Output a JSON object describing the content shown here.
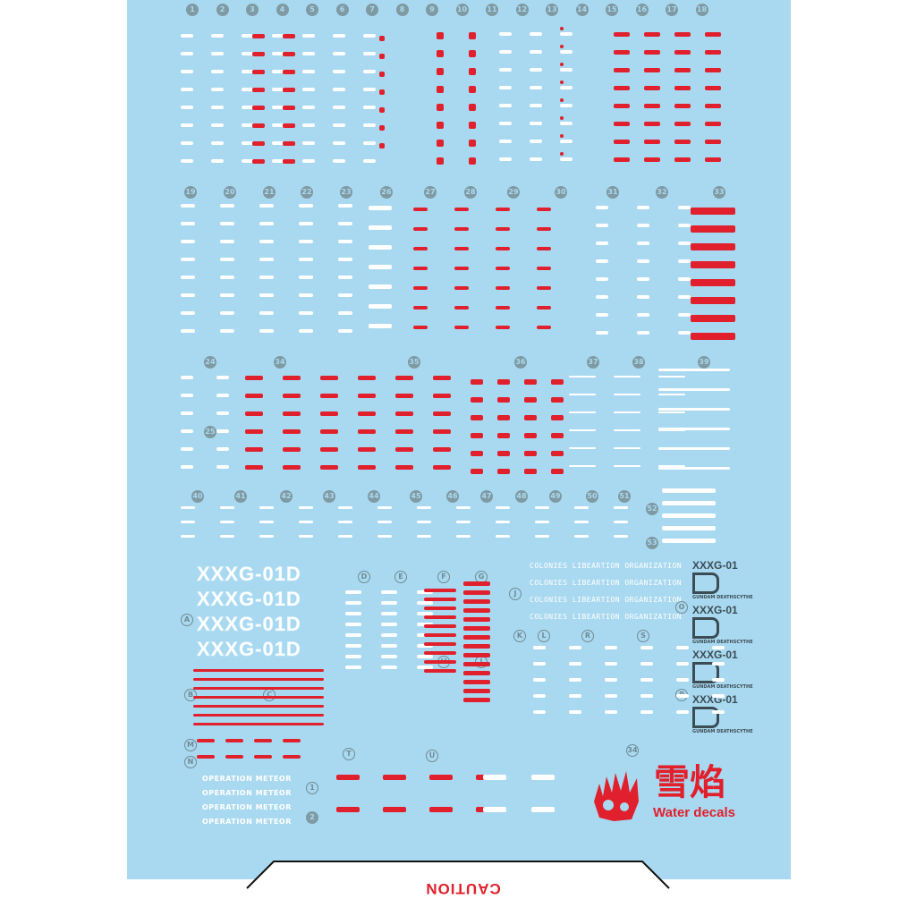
{
  "colors": {
    "sheet": "#a9d9f0",
    "white_decal": "#ffffff",
    "red_decal": "#e0202c",
    "marker": "#7f9aa3"
  },
  "markers": [
    {
      "label": "1"
    },
    {
      "label": "2"
    },
    {
      "label": "3"
    },
    {
      "label": "4"
    },
    {
      "label": "5"
    },
    {
      "label": "6"
    },
    {
      "label": "7"
    },
    {
      "label": "8"
    },
    {
      "label": "9"
    },
    {
      "label": "10"
    },
    {
      "label": "11"
    },
    {
      "label": "12"
    },
    {
      "label": "13"
    },
    {
      "label": "14"
    },
    {
      "label": "15"
    },
    {
      "label": "16"
    },
    {
      "label": "17"
    },
    {
      "label": "18"
    },
    {
      "label": "19"
    },
    {
      "label": "20"
    },
    {
      "label": "21"
    },
    {
      "label": "22"
    },
    {
      "label": "23"
    },
    {
      "label": "26"
    },
    {
      "label": "27"
    },
    {
      "label": "28"
    },
    {
      "label": "29"
    },
    {
      "label": "30"
    },
    {
      "label": "31"
    },
    {
      "label": "32"
    },
    {
      "label": "33"
    },
    {
      "label": "24"
    },
    {
      "label": "34"
    },
    {
      "label": "35"
    },
    {
      "label": "36"
    },
    {
      "label": "37"
    },
    {
      "label": "38"
    },
    {
      "label": "39"
    },
    {
      "label": "25"
    },
    {
      "label": "40"
    },
    {
      "label": "41"
    },
    {
      "label": "42"
    },
    {
      "label": "43"
    },
    {
      "label": "44"
    },
    {
      "label": "45"
    },
    {
      "label": "46"
    },
    {
      "label": "47"
    },
    {
      "label": "48"
    },
    {
      "label": "49"
    },
    {
      "label": "50"
    },
    {
      "label": "51"
    },
    {
      "label": "52"
    },
    {
      "label": "53"
    },
    {
      "label": "D"
    },
    {
      "label": "E"
    },
    {
      "label": "F"
    },
    {
      "label": "G"
    },
    {
      "label": "A"
    },
    {
      "label": "J"
    },
    {
      "label": "O"
    },
    {
      "label": "K"
    },
    {
      "label": "L"
    },
    {
      "label": "R"
    },
    {
      "label": "S"
    },
    {
      "label": "H"
    },
    {
      "label": "I"
    },
    {
      "label": "B"
    },
    {
      "label": "C"
    },
    {
      "label": "P"
    },
    {
      "label": "M"
    },
    {
      "label": "N"
    },
    {
      "label": "T"
    },
    {
      "label": "U"
    },
    {
      "label": "34"
    },
    {
      "label": "1"
    },
    {
      "label": "2"
    }
  ],
  "xxxg_marks": [
    "XXXG-01D",
    "XXXG-01D",
    "XXXG-01D",
    "XXXG-01D"
  ],
  "colonies": [
    "COLONIES LIBEARTION ORGANIZATION",
    "COLONIES LIBEARTION ORGANIZATION",
    "COLONIES LIBEARTION ORGANIZATION",
    "COLONIES LIBEARTION ORGANIZATION"
  ],
  "emblems": [
    {
      "code": "XXXG-01",
      "sub": "GUNDAM DEATHSCYTHE"
    },
    {
      "code": "XXXG-01",
      "sub": "GUNDAM DEATHSCYTHE"
    },
    {
      "code": "XXXG-01",
      "sub": "GUNDAM DEATHSCYTHE"
    },
    {
      "code": "XXXG-01",
      "sub": "GUNDAM DEATHSCYTHE"
    }
  ],
  "operation": [
    "OPERATION METEOR",
    "OPERATION METEOR",
    "OPERATION METEOR",
    "OPERATION METEOR"
  ],
  "logo": {
    "chinese": "雪焰",
    "english": "Water decals"
  },
  "caution": "CAUTION"
}
